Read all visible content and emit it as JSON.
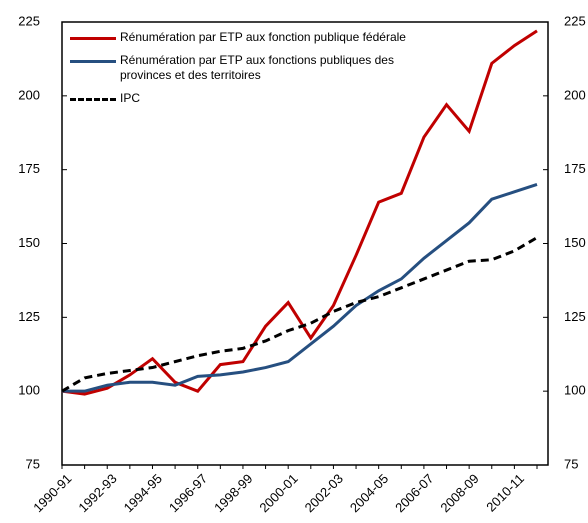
{
  "chart_data": {
    "type": "line",
    "categories": [
      "1990-91",
      null,
      "1992-93",
      null,
      "1994-95",
      null,
      "1996-97",
      null,
      "1998-99",
      null,
      "2000-01",
      null,
      "2002-03",
      null,
      "2004-05",
      null,
      "2006-07",
      null,
      "2008-09",
      null,
      "2010-11",
      null
    ],
    "series": [
      {
        "name": "Rénumération par ETP aux fonction publique fédérale",
        "color": "#c00000",
        "dash": false,
        "values": [
          100,
          99,
          101,
          105.5,
          111,
          103,
          100,
          109,
          110,
          122,
          130,
          118,
          129,
          146,
          164,
          167,
          186,
          197,
          188,
          211,
          217,
          222
        ]
      },
      {
        "name": "Rénumération par ETP aux fonctions publiques des provinces et des territoires",
        "color": "#264f80",
        "dash": false,
        "values": [
          100,
          100,
          102,
          103,
          103,
          102,
          105,
          105.5,
          106.5,
          108,
          110,
          116,
          122,
          129,
          134,
          138,
          145,
          151,
          157,
          165,
          167.5,
          170
        ]
      },
      {
        "name": "IPC",
        "color": "#000000",
        "dash": true,
        "values": [
          100,
          104.5,
          106,
          107,
          108,
          110,
          112,
          113.5,
          114.5,
          117,
          120.5,
          123,
          127,
          130,
          132,
          135,
          138,
          141,
          144,
          144.5,
          147.5,
          152
        ]
      }
    ],
    "ylim": [
      75,
      225
    ],
    "yticks": [
      75,
      100,
      125,
      150,
      175,
      200,
      225
    ],
    "y2lim": [
      75,
      225
    ],
    "y2ticks": [
      75,
      100,
      125,
      150,
      175,
      200,
      225
    ],
    "grid": false,
    "legend": "top-left"
  }
}
